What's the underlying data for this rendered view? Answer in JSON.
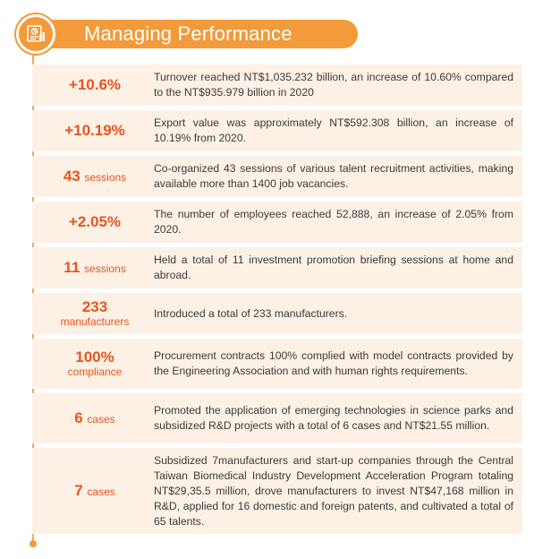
{
  "header": {
    "title": "Managing Performance",
    "icon": "report-chart-icon",
    "accent_color": "#f39a3a",
    "metric_color": "#e8541d"
  },
  "items": [
    {
      "value": "+10.6%",
      "unit": "",
      "description": "Turnover reached NT$1,035.232 billion, an increase of 10.60% compared to the NT$935.979 billion in 2020"
    },
    {
      "value": "+10.19%",
      "unit": "",
      "description": "Export value was approximately NT$592.308 billion, an increase of 10.19% from 2020."
    },
    {
      "value": "43",
      "unit": "sessions",
      "description": "Co-organized 43 sessions of various talent recruitment activities, making available more than 1400 job vacancies."
    },
    {
      "value": "+2.05%",
      "unit": "",
      "description": "The number of employees reached 52,888, an increase of 2.05% from 2020."
    },
    {
      "value": "11",
      "unit": "sessions",
      "description": "Held a total of 11 investment promotion briefing sessions at home and abroad."
    },
    {
      "value": "233",
      "unit": "manufacturers",
      "description": "Introduced a total of 233 manufacturers."
    },
    {
      "value": "100%",
      "unit": "compliance",
      "description": "Procurement contracts 100% complied with model contracts provided by the Engineering Association and with human rights requirements."
    },
    {
      "value": "6",
      "unit": "cases",
      "description": "Promoted the application of emerging technologies in science parks and subsidized R&D projects with a total of 6 cases and NT$21.55 million."
    },
    {
      "value": "7",
      "unit": "cases",
      "description": "Subsidized 7manufacturers and start-up companies through the Central Taiwan Biomedical Industry Development Acceleration Program totaling NT$29,35.5 million, drove manufacturers to invest NT$47,168 million in R&D, applied for 16 domestic and foreign patents, and cultivated a total of 65 talents."
    }
  ]
}
